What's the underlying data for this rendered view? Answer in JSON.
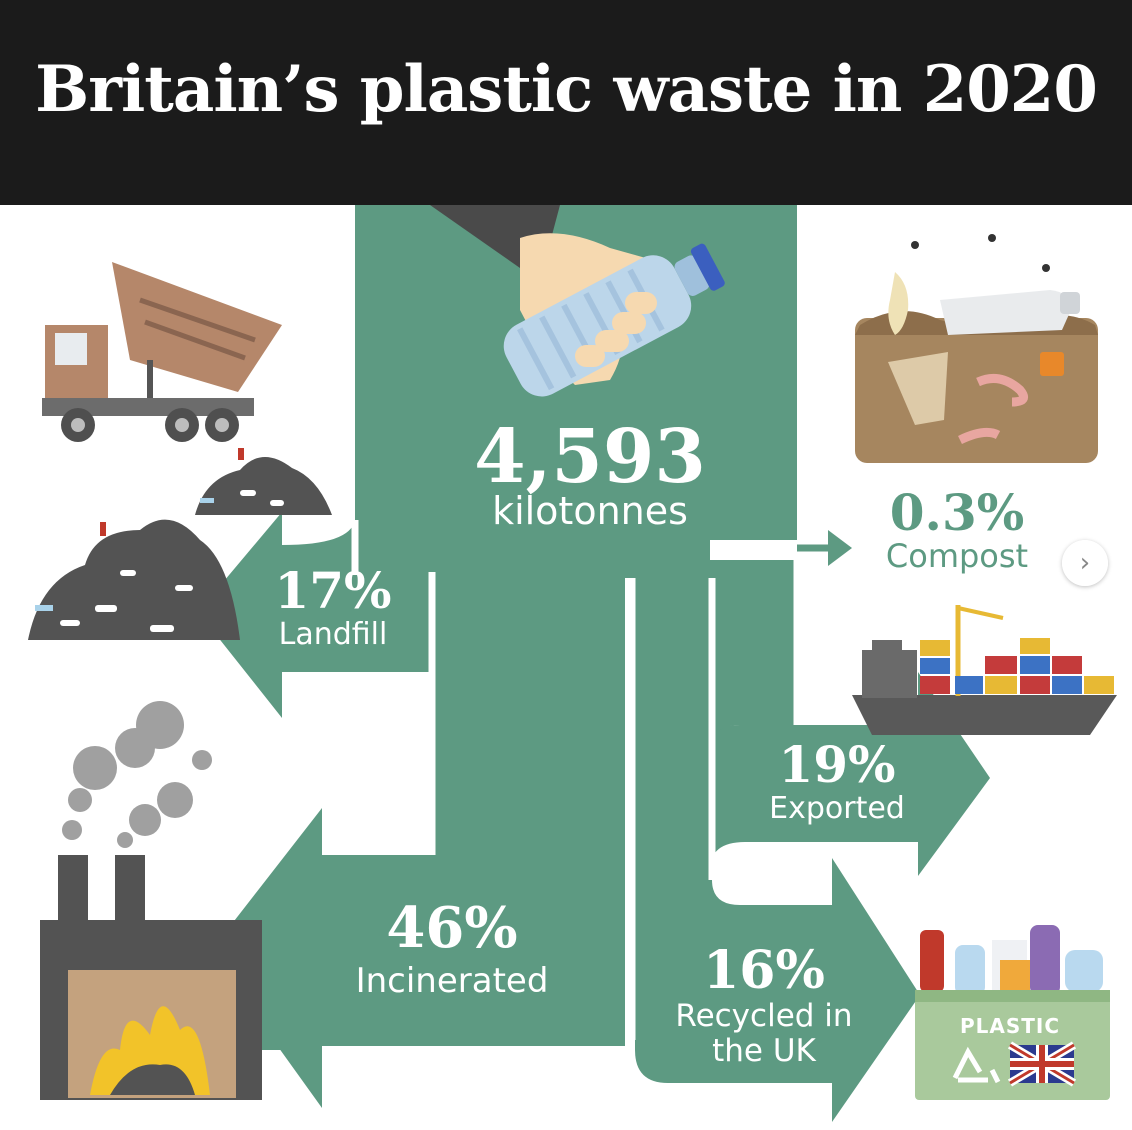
{
  "title": "Britain’s plastic waste in 2020",
  "total": {
    "value": "4,593",
    "unit": "kilotonnes"
  },
  "flows": {
    "landfill": {
      "percent": "17%",
      "label": "Landfill"
    },
    "incinerated": {
      "percent": "46%",
      "label": "Incinerated"
    },
    "compost": {
      "percent": "0.3%",
      "label": "Compost"
    },
    "exported": {
      "percent": "19%",
      "label": "Exported"
    },
    "recycled": {
      "percent": "16%",
      "label_line1": "Recycled in",
      "label_line2": "the UK"
    }
  },
  "recycling_box_label": "PLASTIC",
  "carousel_next_icon": "chevron-right-icon",
  "colors": {
    "flow": "#5d9a82",
    "header": "#1b1b1b",
    "text": "#ffffff"
  }
}
